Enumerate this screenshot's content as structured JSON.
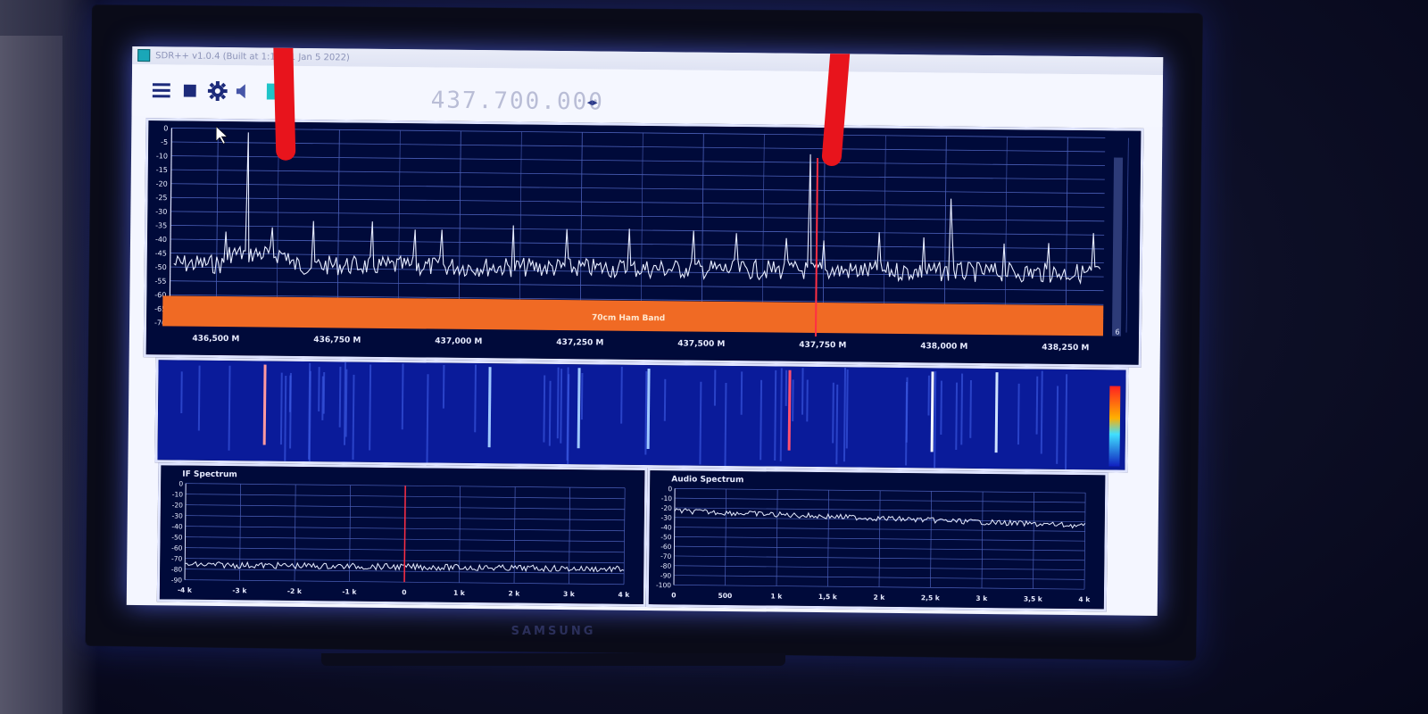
{
  "window": {
    "title": "SDR++ v1.0.4 (Built at 1:11:41 Jan 5 2022)"
  },
  "toolbar": {
    "menu_icon": "hamburger-menu-icon",
    "stop_icon": "stop-square-icon",
    "settings_icon": "gear-icon",
    "volume_icon": "speaker-icon",
    "frequency": "437.700.000",
    "frequency_arrows": "◂▸"
  },
  "colors": {
    "fft_bg": "#000a3a",
    "trace": "#e6ecff",
    "band": "#f06a24",
    "vfo": "#ff2f44",
    "grid": "#4a5fb8"
  },
  "main_fft": {
    "y_ticks": [
      "0",
      "-5",
      "-10",
      "-15",
      "-20",
      "-25",
      "-30",
      "-35",
      "-40",
      "-45",
      "-50",
      "-55",
      "-60",
      "-65",
      "-70"
    ],
    "x_ticks": [
      "436,500 M",
      "436,750 M",
      "437,000 M",
      "437,250 M",
      "437,500 M",
      "437,750 M",
      "438,000 M",
      "438,250 M"
    ],
    "band_label": "70cm Ham Band",
    "scale_label": "6"
  },
  "if_spectrum": {
    "title": "IF Spectrum",
    "y_ticks": [
      "0",
      "-10",
      "-20",
      "-30",
      "-40",
      "-50",
      "-60",
      "-70",
      "-80",
      "-90"
    ],
    "x_ticks": [
      "-4 k",
      "-3 k",
      "-2 k",
      "-1 k",
      "0",
      "1 k",
      "2 k",
      "3 k",
      "4 k"
    ]
  },
  "audio_spectrum": {
    "title": "Audio Spectrum",
    "y_ticks": [
      "0",
      "-10",
      "-20",
      "-30",
      "-40",
      "-50",
      "-60",
      "-70",
      "-80",
      "-90",
      "-100"
    ],
    "x_ticks": [
      "0",
      "500",
      "1 k",
      "1,5 k",
      "2 k",
      "2,5 k",
      "3 k",
      "3,5 k",
      "4 k"
    ]
  },
  "monitor": {
    "brand": "SAMSUNG"
  }
}
